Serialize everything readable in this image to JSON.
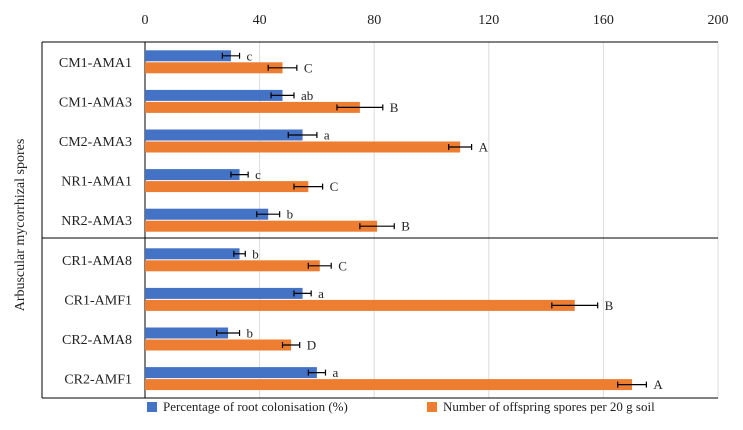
{
  "chart_data": {
    "type": "bar",
    "orientation": "horizontal",
    "ylabel": "Arbuscular mycorrhizal spores",
    "xlabel": "",
    "xlim": [
      0,
      200
    ],
    "x_ticks": [
      "0",
      "40",
      "80",
      "120",
      "160",
      "200"
    ],
    "x_tick_values": [
      0,
      40,
      80,
      120,
      160,
      200
    ],
    "grid": "vertical",
    "legend_position": "bottom",
    "groups": [
      [
        "CM1-AMA1",
        "CM1-AMA3",
        "CM2-AMA3",
        "NR1-AMA1",
        "NR2-AMA3"
      ],
      [
        "CR1-AMA8",
        "CR1-AMF1",
        "CR2-AMA8",
        "CR2-AMF1"
      ]
    ],
    "categories": [
      "CM1-AMA1",
      "CM1-AMA3",
      "CM2-AMA3",
      "NR1-AMA1",
      "NR2-AMA3",
      "CR1-AMA8",
      "CR1-AMF1",
      "CR2-AMA8",
      "CR2-AMF1"
    ],
    "series": [
      {
        "name": "Percentage of root colonisation (%)",
        "color": "#4472C4",
        "values": [
          30,
          48,
          55,
          33,
          43,
          33,
          55,
          29,
          60
        ],
        "errors": [
          3,
          4,
          5,
          3,
          4,
          2,
          3,
          4,
          3
        ],
        "labels": [
          "c",
          "ab",
          "a",
          "c",
          "b",
          "b",
          "a",
          "b",
          "a"
        ]
      },
      {
        "name": "Number of offspring spores per 20 g soil",
        "color": "#ED7D31",
        "values": [
          48,
          75,
          110,
          57,
          81,
          61,
          150,
          51,
          170
        ],
        "errors": [
          5,
          8,
          4,
          5,
          6,
          4,
          8,
          3,
          5
        ],
        "labels": [
          "C",
          "B",
          "A",
          "C",
          "B",
          "C",
          "B",
          "D",
          "A"
        ]
      }
    ]
  }
}
